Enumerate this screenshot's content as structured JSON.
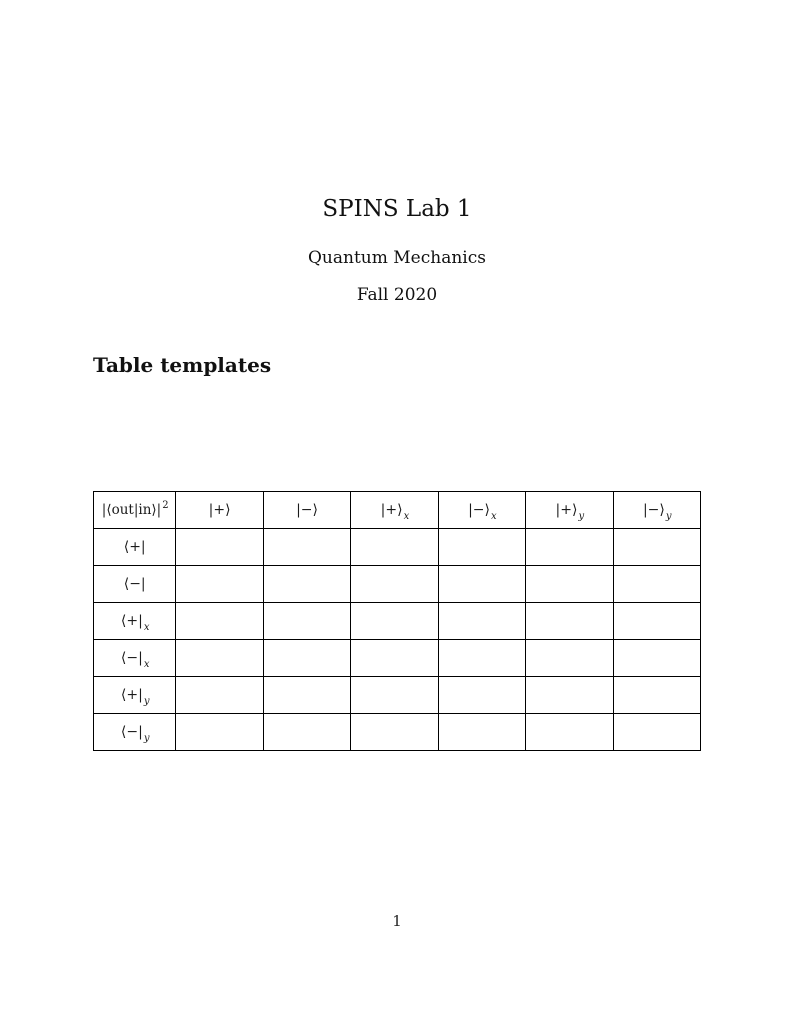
{
  "titles": {
    "title": "SPINS Lab 1",
    "subtitle": "Quantum Mechanics",
    "date": "Fall 2020"
  },
  "section": {
    "heading": "Table templates"
  },
  "table": {
    "corner": {
      "main": "|⟨out|in⟩|",
      "sup": "2"
    },
    "headers": [
      {
        "main": "|+⟩",
        "sub": ""
      },
      {
        "main": "|−⟩",
        "sub": ""
      },
      {
        "main": "|+⟩",
        "sub": "x"
      },
      {
        "main": "|−⟩",
        "sub": "x"
      },
      {
        "main": "|+⟩",
        "sub": "y"
      },
      {
        "main": "|−⟩",
        "sub": "y"
      }
    ],
    "rows": [
      {
        "label": {
          "main": "⟨+|",
          "sub": ""
        },
        "cells": [
          "",
          "",
          "",
          "",
          "",
          ""
        ]
      },
      {
        "label": {
          "main": "⟨−|",
          "sub": ""
        },
        "cells": [
          "",
          "",
          "",
          "",
          "",
          ""
        ]
      },
      {
        "label": {
          "main": "⟨+|",
          "sub": "x"
        },
        "cells": [
          "",
          "",
          "",
          "",
          "",
          ""
        ]
      },
      {
        "label": {
          "main": "⟨−|",
          "sub": "x"
        },
        "cells": [
          "",
          "",
          "",
          "",
          "",
          ""
        ]
      },
      {
        "label": {
          "main": "⟨+|",
          "sub": "y"
        },
        "cells": [
          "",
          "",
          "",
          "",
          "",
          ""
        ]
      },
      {
        "label": {
          "main": "⟨−|",
          "sub": "y"
        },
        "cells": [
          "",
          "",
          "",
          "",
          "",
          ""
        ]
      }
    ]
  },
  "footer": {
    "page_number": "1"
  }
}
